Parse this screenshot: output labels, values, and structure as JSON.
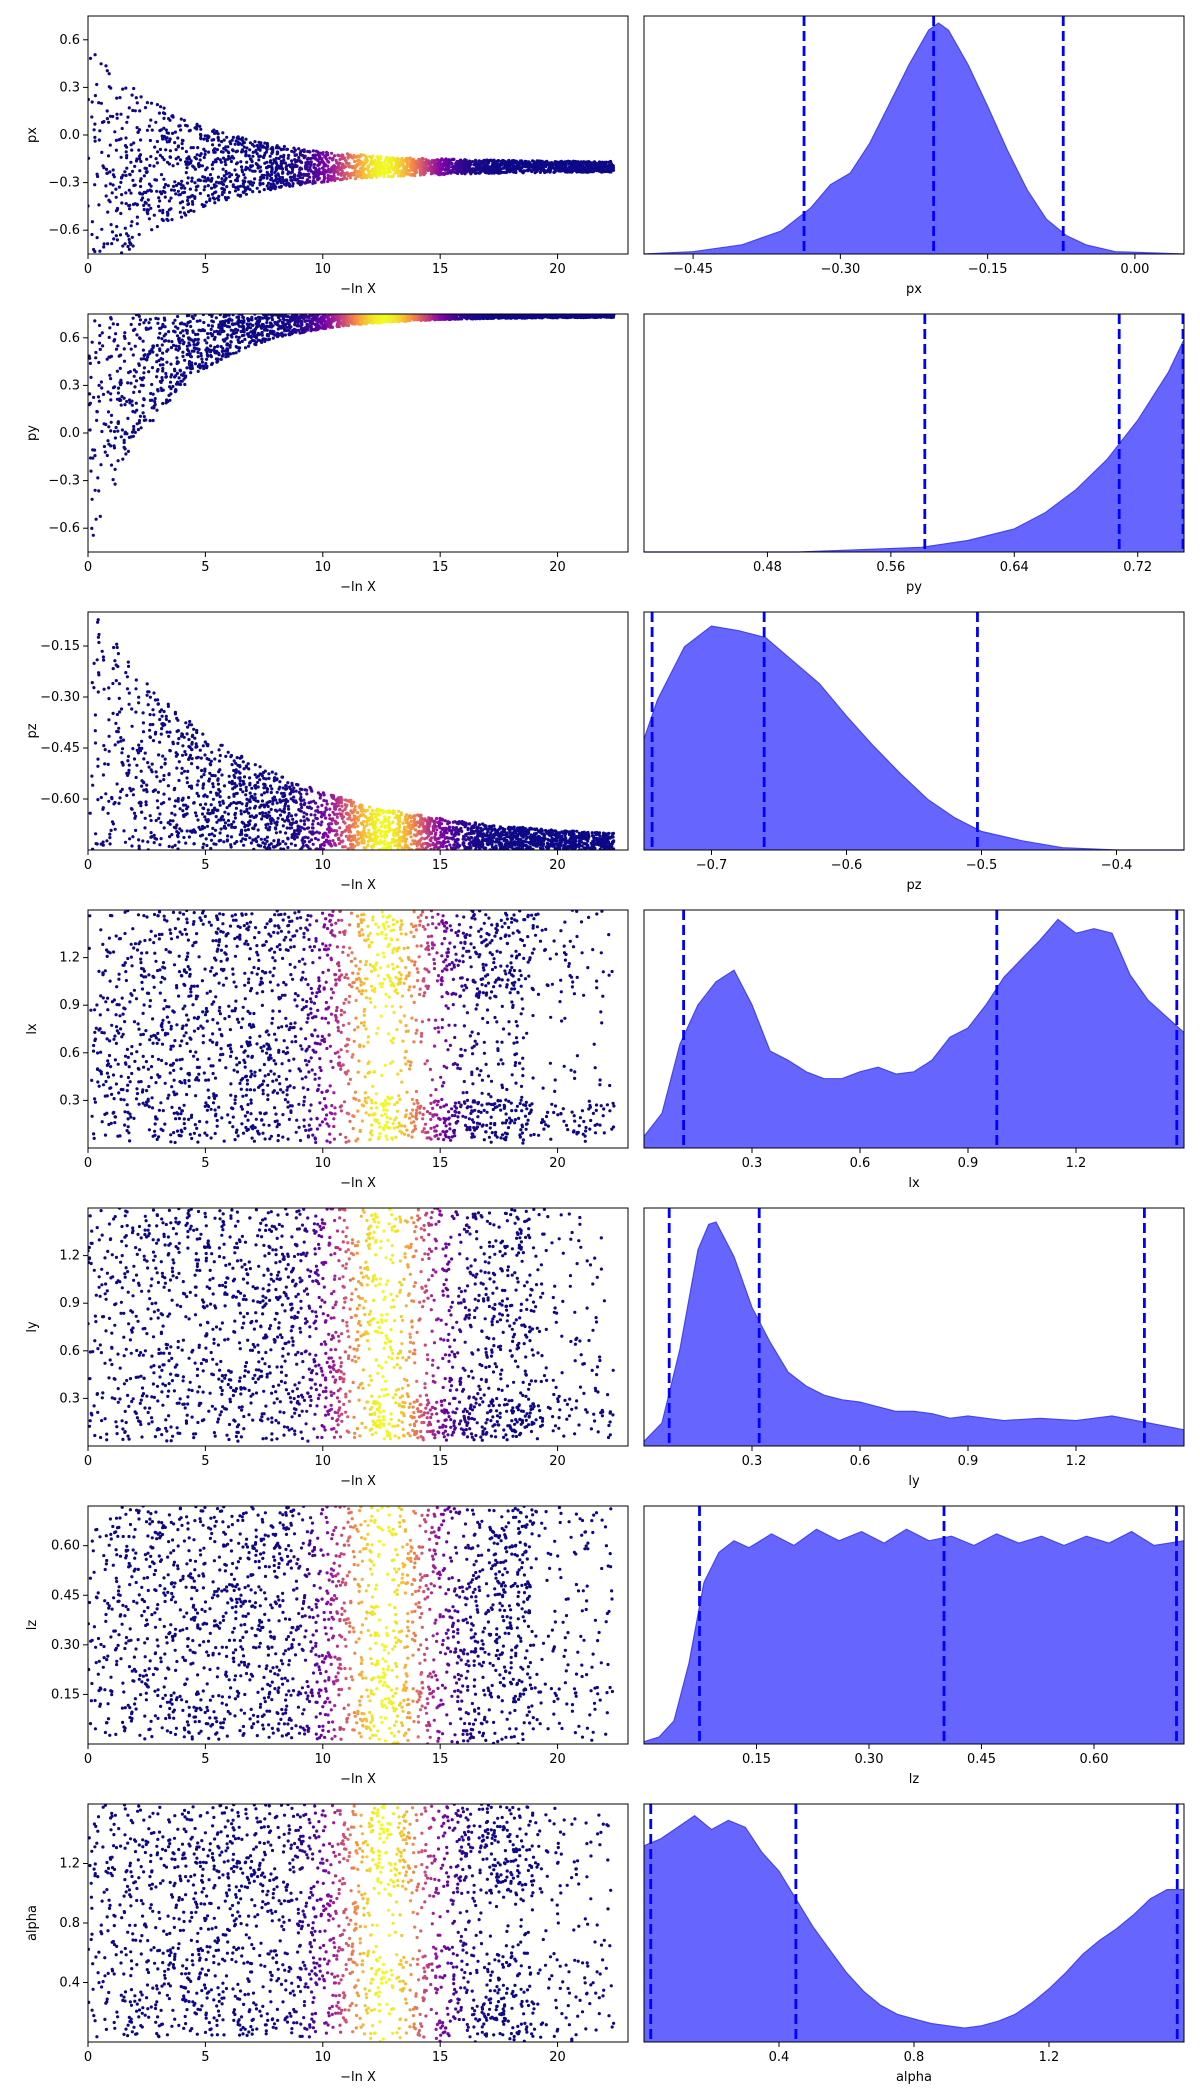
{
  "colors": {
    "kde_fill": "#6666ff",
    "kde_line": "#4444ee",
    "quantile_line": "#0000ff",
    "trace_colormap": "plasma"
  },
  "trace_xlabel": "−ln X",
  "chart_data": [
    {
      "type": "scatter",
      "panel": "trace",
      "parameter": "px",
      "xlabel": "−ln X",
      "ylabel": "px",
      "xlim": [
        0,
        23
      ],
      "ylim": [
        -0.75,
        0.75
      ],
      "xticks": [
        "0",
        "5",
        "10",
        "15",
        "20"
      ],
      "yticks": [
        "−0.6",
        "−0.3",
        "0.0",
        "0.3",
        "0.6"
      ],
      "center": -0.2,
      "width_start": 0.75,
      "width_end": 0.03,
      "narrow_rate": 0.24,
      "cluster_width": 0.12
    },
    {
      "type": "area",
      "panel": "posterior",
      "parameter": "px",
      "xlabel": "px",
      "xlim": [
        -0.5,
        0.05
      ],
      "xticks": [
        "−0.45",
        "−0.30",
        "−0.15",
        "0.00"
      ],
      "quantiles": [
        -0.337,
        -0.205,
        -0.073
      ],
      "density": [
        [
          -0.5,
          0
        ],
        [
          -0.45,
          0.01
        ],
        [
          -0.4,
          0.04
        ],
        [
          -0.36,
          0.1
        ],
        [
          -0.33,
          0.2
        ],
        [
          -0.31,
          0.3
        ],
        [
          -0.29,
          0.35
        ],
        [
          -0.27,
          0.48
        ],
        [
          -0.25,
          0.65
        ],
        [
          -0.23,
          0.82
        ],
        [
          -0.21,
          0.97
        ],
        [
          -0.2,
          1.0
        ],
        [
          -0.19,
          0.97
        ],
        [
          -0.17,
          0.82
        ],
        [
          -0.15,
          0.64
        ],
        [
          -0.13,
          0.45
        ],
        [
          -0.11,
          0.28
        ],
        [
          -0.09,
          0.15
        ],
        [
          -0.07,
          0.08
        ],
        [
          -0.05,
          0.04
        ],
        [
          -0.02,
          0.01
        ],
        [
          0.05,
          0
        ]
      ]
    },
    {
      "type": "scatter",
      "panel": "trace",
      "parameter": "py",
      "xlabel": "−ln X",
      "ylabel": "py",
      "xlim": [
        0,
        23
      ],
      "ylim": [
        -0.75,
        0.75
      ],
      "xticks": [
        "0",
        "5",
        "10",
        "15",
        "20"
      ],
      "yticks": [
        "−0.6",
        "−0.3",
        "0.0",
        "0.3",
        "0.6"
      ],
      "upper": 0.75,
      "floor_start": -0.75,
      "floor_end": 0.72,
      "narrow_rate": 0.3,
      "cluster_width": 0.09
    },
    {
      "type": "area",
      "panel": "posterior",
      "parameter": "py",
      "xlabel": "py",
      "xlim": [
        0.4,
        0.75
      ],
      "xticks": [
        "0.48",
        "0.56",
        "0.64",
        "0.72"
      ],
      "quantiles": [
        0.582,
        0.708,
        0.75
      ],
      "density": [
        [
          0.4,
          0
        ],
        [
          0.5,
          0
        ],
        [
          0.54,
          0.01
        ],
        [
          0.58,
          0.02
        ],
        [
          0.61,
          0.05
        ],
        [
          0.64,
          0.1
        ],
        [
          0.66,
          0.17
        ],
        [
          0.68,
          0.27
        ],
        [
          0.7,
          0.4
        ],
        [
          0.72,
          0.57
        ],
        [
          0.74,
          0.78
        ],
        [
          0.75,
          0.92
        ]
      ]
    },
    {
      "type": "scatter",
      "panel": "trace",
      "parameter": "pz",
      "xlabel": "−ln X",
      "ylabel": "pz",
      "xlim": [
        0,
        23
      ],
      "ylim": [
        -0.75,
        -0.05
      ],
      "xticks": [
        "0",
        "5",
        "10",
        "15",
        "20"
      ],
      "yticks": [
        "−0.60",
        "−0.45",
        "−0.30",
        "−0.15"
      ],
      "floor": -0.75,
      "top_start": -0.05,
      "top_end": -0.67,
      "narrow_rate": 0.16,
      "cluster_width": 0.1
    },
    {
      "type": "area",
      "panel": "posterior",
      "parameter": "pz",
      "xlabel": "pz",
      "xlim": [
        -0.75,
        -0.35
      ],
      "xticks": [
        "−0.7",
        "−0.6",
        "−0.5",
        "−0.4"
      ],
      "quantiles": [
        -0.744,
        -0.661,
        -0.503
      ],
      "density": [
        [
          -0.75,
          0.48
        ],
        [
          -0.74,
          0.65
        ],
        [
          -0.72,
          0.88
        ],
        [
          -0.7,
          0.97
        ],
        [
          -0.68,
          0.95
        ],
        [
          -0.66,
          0.92
        ],
        [
          -0.64,
          0.82
        ],
        [
          -0.62,
          0.72
        ],
        [
          -0.6,
          0.58
        ],
        [
          -0.58,
          0.45
        ],
        [
          -0.56,
          0.33
        ],
        [
          -0.54,
          0.22
        ],
        [
          -0.52,
          0.14
        ],
        [
          -0.5,
          0.08
        ],
        [
          -0.47,
          0.04
        ],
        [
          -0.44,
          0.01
        ],
        [
          -0.4,
          0
        ],
        [
          -0.35,
          0
        ]
      ]
    },
    {
      "type": "scatter",
      "panel": "trace",
      "parameter": "lx",
      "xlabel": "−ln X",
      "ylabel": "lx",
      "xlim": [
        0,
        23
      ],
      "ylim": [
        0,
        1.5
      ],
      "xticks": [
        "0",
        "5",
        "10",
        "15",
        "20"
      ],
      "yticks": [
        "0.3",
        "0.6",
        "0.9",
        "1.2"
      ],
      "modes": [
        [
          0.05,
          0.3,
          0.12
        ],
        [
          0.95,
          1.5,
          0.55
        ]
      ],
      "cluster_width": 0.55
    },
    {
      "type": "area",
      "panel": "posterior",
      "parameter": "lx",
      "xlabel": "lx",
      "xlim": [
        0,
        1.5
      ],
      "xticks": [
        "0.3",
        "0.6",
        "0.9",
        "1.2"
      ],
      "quantiles": [
        0.11,
        0.98,
        1.48
      ],
      "density": [
        [
          0,
          0.05
        ],
        [
          0.05,
          0.15
        ],
        [
          0.1,
          0.45
        ],
        [
          0.15,
          0.62
        ],
        [
          0.2,
          0.72
        ],
        [
          0.25,
          0.77
        ],
        [
          0.3,
          0.62
        ],
        [
          0.35,
          0.42
        ],
        [
          0.4,
          0.38
        ],
        [
          0.45,
          0.33
        ],
        [
          0.5,
          0.3
        ],
        [
          0.55,
          0.3
        ],
        [
          0.6,
          0.33
        ],
        [
          0.65,
          0.35
        ],
        [
          0.7,
          0.32
        ],
        [
          0.75,
          0.33
        ],
        [
          0.8,
          0.38
        ],
        [
          0.85,
          0.48
        ],
        [
          0.9,
          0.52
        ],
        [
          0.95,
          0.62
        ],
        [
          1.0,
          0.74
        ],
        [
          1.05,
          0.82
        ],
        [
          1.1,
          0.9
        ],
        [
          1.15,
          0.99
        ],
        [
          1.2,
          0.93
        ],
        [
          1.25,
          0.95
        ],
        [
          1.3,
          0.93
        ],
        [
          1.35,
          0.75
        ],
        [
          1.4,
          0.64
        ],
        [
          1.45,
          0.57
        ],
        [
          1.5,
          0.5
        ]
      ]
    },
    {
      "type": "scatter",
      "panel": "trace",
      "parameter": "ly",
      "xlabel": "−ln X",
      "ylabel": "ly",
      "xlim": [
        0,
        23
      ],
      "ylim": [
        0,
        1.5
      ],
      "xticks": [
        "0",
        "5",
        "10",
        "15",
        "20"
      ],
      "yticks": [
        "0.3",
        "0.6",
        "0.9",
        "1.2"
      ],
      "modes": [
        [
          0.05,
          0.3,
          0.12
        ],
        [
          0.3,
          1.5,
          0.3
        ]
      ],
      "cluster_width": 0.55
    },
    {
      "type": "area",
      "panel": "posterior",
      "parameter": "ly",
      "xlabel": "ly",
      "xlim": [
        0,
        1.5
      ],
      "xticks": [
        "0.3",
        "0.6",
        "0.9",
        "1.2"
      ],
      "quantiles": [
        0.07,
        0.32,
        1.39
      ],
      "density": [
        [
          0,
          0.02
        ],
        [
          0.05,
          0.1
        ],
        [
          0.1,
          0.42
        ],
        [
          0.15,
          0.85
        ],
        [
          0.18,
          0.96
        ],
        [
          0.2,
          0.97
        ],
        [
          0.25,
          0.82
        ],
        [
          0.3,
          0.6
        ],
        [
          0.35,
          0.45
        ],
        [
          0.4,
          0.32
        ],
        [
          0.45,
          0.26
        ],
        [
          0.5,
          0.22
        ],
        [
          0.55,
          0.2
        ],
        [
          0.6,
          0.19
        ],
        [
          0.65,
          0.17
        ],
        [
          0.7,
          0.15
        ],
        [
          0.75,
          0.15
        ],
        [
          0.8,
          0.14
        ],
        [
          0.85,
          0.12
        ],
        [
          0.9,
          0.13
        ],
        [
          0.95,
          0.12
        ],
        [
          1.0,
          0.11
        ],
        [
          1.1,
          0.12
        ],
        [
          1.2,
          0.11
        ],
        [
          1.3,
          0.13
        ],
        [
          1.4,
          0.1
        ],
        [
          1.5,
          0.07
        ]
      ]
    },
    {
      "type": "scatter",
      "panel": "trace",
      "parameter": "lz",
      "xlabel": "−ln X",
      "ylabel": "lz",
      "xlim": [
        0,
        23
      ],
      "ylim": [
        0,
        0.72
      ],
      "xticks": [
        "0",
        "5",
        "10",
        "15",
        "20"
      ],
      "yticks": [
        "0.15",
        "0.30",
        "0.45",
        "0.60"
      ],
      "modes": [
        [
          0.0,
          0.72,
          0.5
        ]
      ],
      "cluster_width": 0.5
    },
    {
      "type": "area",
      "panel": "posterior",
      "parameter": "lz",
      "xlabel": "lz",
      "xlim": [
        0,
        0.72
      ],
      "xticks": [
        "0.15",
        "0.30",
        "0.45",
        "0.60"
      ],
      "quantiles": [
        0.074,
        0.4,
        0.71
      ],
      "density": [
        [
          0,
          0.01
        ],
        [
          0.02,
          0.03
        ],
        [
          0.04,
          0.1
        ],
        [
          0.06,
          0.35
        ],
        [
          0.08,
          0.7
        ],
        [
          0.1,
          0.83
        ],
        [
          0.12,
          0.88
        ],
        [
          0.14,
          0.85
        ],
        [
          0.17,
          0.91
        ],
        [
          0.2,
          0.86
        ],
        [
          0.23,
          0.93
        ],
        [
          0.26,
          0.88
        ],
        [
          0.29,
          0.92
        ],
        [
          0.32,
          0.87
        ],
        [
          0.35,
          0.93
        ],
        [
          0.38,
          0.88
        ],
        [
          0.41,
          0.9
        ],
        [
          0.44,
          0.86
        ],
        [
          0.47,
          0.91
        ],
        [
          0.5,
          0.87
        ],
        [
          0.53,
          0.9
        ],
        [
          0.56,
          0.86
        ],
        [
          0.59,
          0.9
        ],
        [
          0.62,
          0.87
        ],
        [
          0.65,
          0.92
        ],
        [
          0.68,
          0.86
        ],
        [
          0.72,
          0.88
        ]
      ]
    },
    {
      "type": "scatter",
      "panel": "trace",
      "parameter": "alpha",
      "xlabel": "−ln X",
      "ylabel": "alpha",
      "xlim": [
        0,
        23
      ],
      "ylim": [
        0,
        1.6
      ],
      "xticks": [
        "0",
        "5",
        "10",
        "15",
        "20"
      ],
      "yticks": [
        "0.4",
        "0.8",
        "1.2"
      ],
      "modes": [
        [
          0.0,
          0.6,
          0.2
        ],
        [
          1.0,
          1.6,
          0.55
        ]
      ],
      "cluster_width": 0.45
    },
    {
      "type": "area",
      "panel": "posterior",
      "parameter": "alpha",
      "xlabel": "alpha",
      "xlim": [
        0,
        1.6
      ],
      "xticks": [
        "0.4",
        "0.8",
        "1.2"
      ],
      "quantiles": [
        0.02,
        0.45,
        1.58
      ],
      "density": [
        [
          0,
          0.85
        ],
        [
          0.05,
          0.88
        ],
        [
          0.1,
          0.93
        ],
        [
          0.15,
          0.98
        ],
        [
          0.2,
          0.92
        ],
        [
          0.25,
          0.96
        ],
        [
          0.3,
          0.93
        ],
        [
          0.35,
          0.82
        ],
        [
          0.4,
          0.74
        ],
        [
          0.45,
          0.62
        ],
        [
          0.5,
          0.5
        ],
        [
          0.55,
          0.4
        ],
        [
          0.6,
          0.3
        ],
        [
          0.65,
          0.22
        ],
        [
          0.7,
          0.16
        ],
        [
          0.75,
          0.12
        ],
        [
          0.8,
          0.1
        ],
        [
          0.85,
          0.08
        ],
        [
          0.9,
          0.07
        ],
        [
          0.95,
          0.06
        ],
        [
          1.0,
          0.07
        ],
        [
          1.05,
          0.09
        ],
        [
          1.1,
          0.12
        ],
        [
          1.15,
          0.17
        ],
        [
          1.2,
          0.23
        ],
        [
          1.25,
          0.3
        ],
        [
          1.3,
          0.38
        ],
        [
          1.35,
          0.44
        ],
        [
          1.4,
          0.49
        ],
        [
          1.45,
          0.55
        ],
        [
          1.5,
          0.62
        ],
        [
          1.55,
          0.66
        ],
        [
          1.6,
          0.66
        ]
      ]
    }
  ]
}
